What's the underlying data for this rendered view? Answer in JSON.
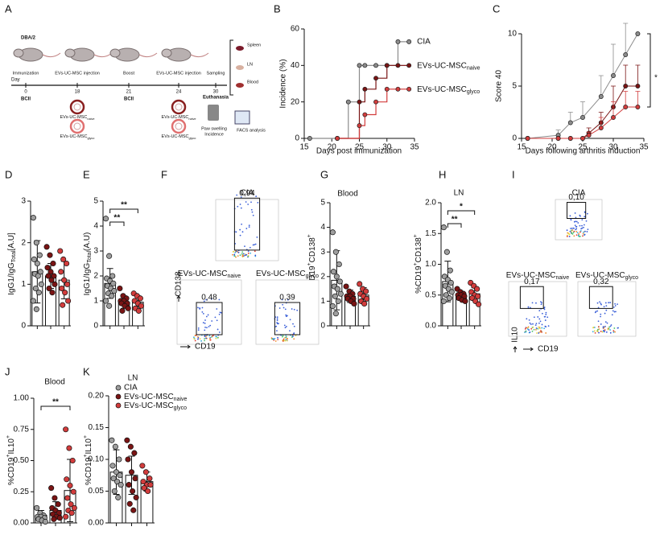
{
  "panel_letters": [
    "A",
    "B",
    "C",
    "D",
    "E",
    "F",
    "G",
    "H",
    "I",
    "J",
    "K"
  ],
  "diagram": {
    "strain": "DBA/2",
    "steps": [
      "Immunization",
      "EVs-UC-MSC injection",
      "Boost",
      "EVs-UC-MSC injection",
      "Sampling"
    ],
    "day_label": "Day",
    "days": [
      "0",
      "18",
      "21",
      "24",
      "30"
    ],
    "antigen": "BCII",
    "euthanasia": "Euthanasia",
    "ev_types": [
      [
        "EVs-UC-MSC",
        {
          "text": "naive",
          "sub": true
        }
      ],
      [
        "EVs-UC-MSC",
        {
          "text": "glyco",
          "sub": true
        }
      ]
    ],
    "samples": [
      "Spleen",
      "LN",
      "Blood"
    ],
    "readouts": [
      "Paw swelling",
      "Incidence",
      "FACS analysis"
    ]
  },
  "chart_data": [
    {
      "type": "line",
      "step": true,
      "x_label": "Days post immunization",
      "y_label": "Incidence (%)",
      "xlim": [
        15,
        35
      ],
      "xticks": [
        15,
        20,
        25,
        30,
        35
      ],
      "ylim": [
        0,
        60
      ],
      "yticks": [
        0,
        20,
        40,
        60
      ],
      "legend": "inline",
      "series": [
        {
          "name": "CIA",
          "color": "#8c8c8c",
          "x": [
            16,
            21,
            23,
            25,
            26,
            28,
            30,
            32,
            34
          ],
          "values": [
            0,
            0,
            20,
            40,
            40,
            40,
            40,
            53,
            53
          ]
        },
        {
          "name": [
            "EVs-UC-MSC",
            {
              "text": "naive",
              "sub": true
            }
          ],
          "color": "#7a1414",
          "x": [
            21,
            25,
            26,
            28,
            30,
            32,
            34
          ],
          "values": [
            0,
            20,
            27,
            33,
            40,
            40,
            40
          ]
        },
        {
          "name": [
            "EVs-UC-MSC",
            {
              "text": "glyco",
              "sub": true
            }
          ],
          "color": "#d23c3c",
          "x": [
            21,
            25,
            26,
            28,
            30,
            32,
            34
          ],
          "values": [
            0,
            7,
            13,
            20,
            27,
            27,
            27
          ]
        }
      ]
    },
    {
      "type": "line",
      "x_label": "Days following arthritis induction",
      "y_label": "Score 40",
      "xlim": [
        15,
        35
      ],
      "xticks": [
        15,
        20,
        25,
        30,
        35
      ],
      "ylim": [
        0,
        10
      ],
      "yticks": [
        0,
        5,
        10
      ],
      "significance": [
        {
          "label": "*"
        }
      ],
      "series": [
        {
          "color": "#8c8c8c",
          "x": [
            16,
            21,
            23,
            25,
            28,
            30,
            32,
            34
          ],
          "values": [
            0,
            0.3,
            1.5,
            2,
            4,
            6,
            8,
            10
          ],
          "errors": [
            0,
            0.5,
            1,
            1.5,
            2,
            3,
            3,
            0
          ]
        },
        {
          "color": "#7a1414",
          "x": [
            16,
            21,
            23,
            25,
            26,
            28,
            30,
            32,
            34
          ],
          "values": [
            0,
            0,
            0,
            0,
            0.5,
            1.5,
            3,
            5,
            5
          ],
          "errors": [
            0,
            0,
            0,
            0,
            0.5,
            1,
            2,
            2,
            2
          ]
        },
        {
          "color": "#d23c3c",
          "x": [
            16,
            21,
            23,
            25,
            26,
            28,
            30,
            32,
            34
          ],
          "values": [
            0,
            0,
            0,
            0,
            0.3,
            1,
            2,
            3,
            3
          ],
          "errors": [
            0,
            0,
            0,
            0,
            0.3,
            1,
            1.5,
            1.5,
            1.5
          ]
        }
      ]
    },
    {
      "type": "dot-bar",
      "y_label": [
        "IgG1/IgG",
        {
          "text": "Total",
          "sub": true
        },
        "[A.U]"
      ],
      "ylim": [
        0,
        3
      ],
      "yticks": [
        0,
        1,
        2,
        3
      ],
      "series": [
        {
          "color": "#9e9e9e",
          "mean": 1.3,
          "error": 0.75,
          "values": [
            2.6,
            2.0,
            1.7,
            1.6,
            1.5,
            1.3,
            1.25,
            1.2,
            1.0,
            0.9,
            0.8,
            0.6,
            0.4
          ]
        },
        {
          "color": "#7a1414",
          "mean": 1.2,
          "error": 0.3,
          "values": [
            1.9,
            1.7,
            1.5,
            1.4,
            1.3,
            1.2,
            1.2,
            1.1,
            1.0,
            0.9,
            0.8
          ]
        },
        {
          "color": "#d23c3c",
          "mean": 1.1,
          "error": 0.45,
          "values": [
            1.8,
            1.6,
            1.5,
            1.3,
            1.1,
            1.0,
            0.9,
            0.8,
            0.6,
            0.5
          ]
        }
      ]
    },
    {
      "type": "dot-bar",
      "y_label": [
        "IgG1/IgG",
        {
          "text": "Total",
          "sub": true
        },
        "(A.U)"
      ],
      "ylim": [
        0,
        5
      ],
      "yticks": [
        0,
        1,
        2,
        3,
        4,
        5
      ],
      "significance": [
        {
          "from": 0,
          "to": 1,
          "label": "**"
        },
        {
          "from": 0,
          "to": 2,
          "label": "**"
        }
      ],
      "series": [
        {
          "color": "#9e9e9e",
          "mean": 1.7,
          "error": 0.6,
          "values": [
            4.3,
            2.8,
            2.0,
            1.9,
            1.8,
            1.7,
            1.6,
            1.5,
            1.4,
            1.3,
            1.2,
            1.0,
            0.8
          ]
        },
        {
          "color": "#7a1414",
          "mean": 0.95,
          "error": 0.25,
          "values": [
            1.5,
            1.2,
            1.1,
            1.0,
            1.0,
            0.9,
            0.9,
            0.8,
            0.7,
            0.6
          ]
        },
        {
          "color": "#d23c3c",
          "mean": 0.95,
          "error": 0.25,
          "values": [
            1.3,
            1.2,
            1.1,
            1.0,
            0.9,
            0.8,
            0.7,
            0.6
          ]
        }
      ]
    },
    {
      "type": "dot-bar",
      "title": "Blood",
      "y_label": [
        "%CD19",
        {
          "text": "+",
          "sup": true
        },
        "CD138",
        {
          "text": "+",
          "sup": true
        }
      ],
      "ylim": [
        0,
        5
      ],
      "yticks": [
        0,
        1,
        2,
        3,
        4,
        5
      ],
      "series": [
        {
          "color": "#9e9e9e",
          "mean": 1.85,
          "error": 1.2,
          "values": [
            3.8,
            3.0,
            2.5,
            2.2,
            2.0,
            1.8,
            1.6,
            1.5,
            1.3,
            1.2,
            1.0,
            0.8,
            0.5
          ]
        },
        {
          "color": "#7a1414",
          "mean": 1.2,
          "error": 0.25,
          "values": [
            1.6,
            1.4,
            1.3,
            1.2,
            1.2,
            1.1,
            1.1,
            1.0,
            0.9
          ]
        },
        {
          "color": "#d23c3c",
          "mean": 1.25,
          "error": 0.3,
          "values": [
            1.7,
            1.5,
            1.4,
            1.3,
            1.2,
            1.1,
            1.0,
            0.9
          ]
        }
      ]
    },
    {
      "type": "dot-bar",
      "title": "LN",
      "y_label": [
        "%CD19",
        {
          "text": "+",
          "sup": true
        },
        "CD138",
        {
          "text": "+",
          "sup": true
        }
      ],
      "ylim": [
        0,
        2
      ],
      "yticks": [
        {
          "value": 0,
          "label": "0.0"
        },
        {
          "value": 0.5,
          "label": "0.5"
        },
        {
          "value": 1,
          "label": "1.0"
        },
        {
          "value": 1.5,
          "label": "1.5"
        },
        {
          "value": 2,
          "label": "2.0"
        }
      ],
      "significance": [
        {
          "from": 0,
          "to": 1,
          "label": "**"
        },
        {
          "from": 0,
          "to": 2,
          "label": "*"
        }
      ],
      "series": [
        {
          "color": "#9e9e9e",
          "mean": 0.72,
          "error": 0.33,
          "values": [
            1.6,
            1.2,
            0.9,
            0.8,
            0.75,
            0.7,
            0.65,
            0.6,
            0.55,
            0.5,
            0.45,
            0.4
          ]
        },
        {
          "color": "#7a1414",
          "mean": 0.5,
          "error": 0.06,
          "values": [
            0.6,
            0.55,
            0.52,
            0.5,
            0.5,
            0.48,
            0.45,
            0.42,
            0.4
          ]
        },
        {
          "color": "#d23c3c",
          "mean": 0.52,
          "error": 0.1,
          "values": [
            0.7,
            0.65,
            0.6,
            0.55,
            0.5,
            0.48,
            0.45,
            0.4,
            0.35
          ]
        }
      ]
    },
    {
      "type": "dot-bar",
      "title": "Blood",
      "y_label": [
        "%CD19",
        {
          "text": "+",
          "sup": true
        },
        "IL10",
        {
          "text": "+",
          "sup": true
        }
      ],
      "ylim": [
        0,
        1
      ],
      "yticks": [
        {
          "value": 0,
          "label": "0.00"
        },
        {
          "value": 0.25,
          "label": "0.25"
        },
        {
          "value": 0.5,
          "label": "0.50"
        },
        {
          "value": 0.75,
          "label": "0.75"
        },
        {
          "value": 1,
          "label": "1.00"
        }
      ],
      "significance": [
        {
          "from": 0,
          "to": 2,
          "label": "**"
        }
      ],
      "series": [
        {
          "color": "#9e9e9e",
          "mean": 0.06,
          "error": 0.04,
          "values": [
            0.12,
            0.08,
            0.06,
            0.05,
            0.05,
            0.04,
            0.03,
            0.02,
            0.01
          ]
        },
        {
          "color": "#7a1414",
          "mean": 0.1,
          "error": 0.07,
          "values": [
            0.28,
            0.2,
            0.15,
            0.12,
            0.1,
            0.08,
            0.07,
            0.05,
            0.04,
            0.03
          ]
        },
        {
          "color": "#d23c3c",
          "mean": 0.26,
          "error": 0.25,
          "values": [
            0.75,
            0.6,
            0.5,
            0.35,
            0.3,
            0.25,
            0.2,
            0.15,
            0.12,
            0.1,
            0.08,
            0.05
          ]
        }
      ]
    },
    {
      "type": "dot-bar",
      "title": "LN",
      "y_label": [
        "%CD19",
        {
          "text": "+",
          "sup": true
        },
        "IL10",
        {
          "text": "+",
          "sup": true
        }
      ],
      "ylim": [
        0,
        0.2
      ],
      "yticks": [
        {
          "value": 0,
          "label": "0.00"
        },
        {
          "value": 0.05,
          "label": "0.05"
        },
        {
          "value": 0.1,
          "label": "0.10"
        },
        {
          "value": 0.15,
          "label": "0.15"
        },
        {
          "value": 0.2,
          "label": "0.20"
        }
      ],
      "legend": "top-right",
      "series": [
        {
          "name": "CIA",
          "color": "#9e9e9e",
          "mean": 0.08,
          "error": 0.035,
          "values": [
            0.13,
            0.12,
            0.1,
            0.09,
            0.08,
            0.075,
            0.07,
            0.065,
            0.06,
            0.05,
            0.04
          ]
        },
        {
          "name": [
            "EVs-UC-MSC",
            {
              "text": "naive",
              "sub": true
            }
          ],
          "color": "#7a1414",
          "mean": 0.075,
          "error": 0.03,
          "values": [
            0.13,
            0.12,
            0.11,
            0.1,
            0.08,
            0.07,
            0.06,
            0.05,
            0.04,
            0.03,
            0.02
          ]
        },
        {
          "name": [
            "EVs-UC-MSC",
            {
              "text": "glyco",
              "sub": true
            }
          ],
          "color": "#d23c3c",
          "mean": 0.065,
          "error": 0.015,
          "values": [
            0.09,
            0.08,
            0.07,
            0.065,
            0.06,
            0.06,
            0.055,
            0.05
          ]
        }
      ]
    }
  ],
  "flow_plots": [
    {
      "x_label": "CD19",
      "y_label": "CD138",
      "plots": [
        {
          "title": "CIA",
          "gate": "0,94"
        },
        {
          "title": [
            "EVs-UC-MSC",
            {
              "text": "naive",
              "sub": true
            }
          ],
          "gate": "0,48"
        },
        {
          "title": [
            "EVs-UC-MSC",
            {
              "text": "glyco",
              "sub": true
            }
          ],
          "gate": "0,39"
        }
      ]
    },
    {
      "x_label": "CD19",
      "y_label": "IL10",
      "plots": [
        {
          "title": "CIA",
          "gate": "0,10"
        },
        {
          "title": [
            "EVs-UC-MSC",
            {
              "text": "naive",
              "sub": true
            }
          ],
          "gate": "0,17"
        },
        {
          "title": [
            "EVs-UC-MSC",
            {
              "text": "glyco",
              "sub": true
            }
          ],
          "gate": "0,32"
        }
      ]
    }
  ]
}
